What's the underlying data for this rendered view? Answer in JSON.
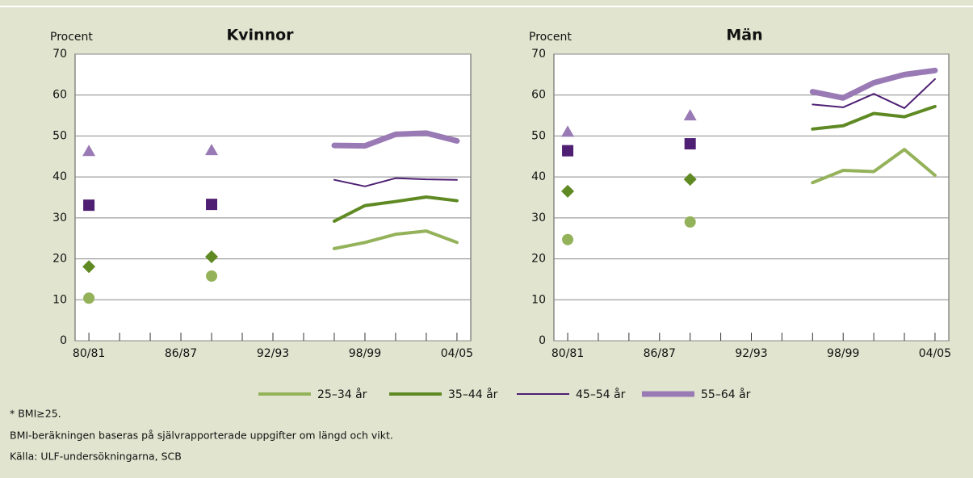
{
  "chart_data": [
    {
      "type": "line",
      "title": "Kvinnor",
      "ylabel": "Procent",
      "x": [
        1996,
        1998,
        2000,
        2002,
        2004
      ],
      "marker_x": [
        1980,
        1988
      ],
      "xlim": [
        1979.1,
        2004.9
      ],
      "xticks": [
        {
          "value": 1980,
          "label": "80/81"
        },
        {
          "value": 1986,
          "label": "86/87"
        },
        {
          "value": 1992,
          "label": "92/93"
        },
        {
          "value": 1998,
          "label": "98/99"
        },
        {
          "value": 2004,
          "label": "04/05"
        }
      ],
      "xminor_ticks": [
        1982,
        1984,
        1988,
        1990,
        1994,
        1996,
        2000,
        2002
      ],
      "ylim": [
        0,
        70
      ],
      "yticks": [
        0,
        10,
        20,
        30,
        40,
        50,
        60,
        70
      ],
      "grid": true,
      "series": [
        {
          "name": "25–34 år",
          "color": "#94b25a",
          "width": 4,
          "marker": "circle",
          "marker_values": [
            10.4,
            15.8
          ],
          "values": [
            22.5,
            24,
            26,
            26.8,
            24
          ]
        },
        {
          "name": "35–44 år",
          "color": "#5f8a23",
          "width": 4,
          "marker": "diamond",
          "marker_values": [
            18.1,
            20.5
          ],
          "values": [
            29.2,
            33,
            34,
            35.1,
            34.2
          ]
        },
        {
          "name": "45–54 år",
          "color": "#4e1f73",
          "width": 2,
          "marker": "square",
          "marker_values": [
            33.1,
            33.3
          ],
          "values": [
            39.3,
            37.7,
            39.7,
            39.4,
            39.3
          ]
        },
        {
          "name": "55–64 år",
          "color": "#9a7ab5",
          "width": 7,
          "marker": "triangle",
          "marker_values": [
            46.3,
            46.5
          ],
          "values": [
            47.7,
            47.6,
            50.4,
            50.7,
            48.8
          ]
        }
      ]
    },
    {
      "type": "line",
      "title": "Män",
      "ylabel": "Procent",
      "x": [
        1996,
        1998,
        2000,
        2002,
        2004
      ],
      "marker_x": [
        1980,
        1988
      ],
      "xlim": [
        1979.1,
        2004.9
      ],
      "xticks": [
        {
          "value": 1980,
          "label": "80/81"
        },
        {
          "value": 1986,
          "label": "86/87"
        },
        {
          "value": 1992,
          "label": "92/93"
        },
        {
          "value": 1998,
          "label": "98/99"
        },
        {
          "value": 2004,
          "label": "04/05"
        }
      ],
      "xminor_ticks": [
        1982,
        1984,
        1988,
        1990,
        1994,
        1996,
        2000,
        2002
      ],
      "ylim": [
        0,
        70
      ],
      "yticks": [
        0,
        10,
        20,
        30,
        40,
        50,
        60,
        70
      ],
      "grid": true,
      "series": [
        {
          "color": "#94b25a",
          "width": 4,
          "marker": "circle",
          "marker_values": [
            24.7,
            29
          ],
          "values": [
            38.6,
            41.6,
            41.3,
            46.7,
            40.4
          ]
        },
        {
          "color": "#5f8a23",
          "width": 4,
          "marker": "diamond",
          "marker_values": [
            36.5,
            39.4
          ],
          "values": [
            51.7,
            52.5,
            55.5,
            54.7,
            57.2
          ]
        },
        {
          "color": "#4e1f73",
          "width": 2,
          "marker": "square",
          "marker_values": [
            46.4,
            48.1
          ],
          "values": [
            57.7,
            57,
            60.3,
            56.8,
            63.9
          ]
        },
        {
          "color": "#9a7ab5",
          "width": 7,
          "marker": "triangle",
          "marker_values": [
            51,
            55
          ],
          "values": [
            60.8,
            59.3,
            63,
            65,
            66
          ]
        }
      ]
    }
  ],
  "notes": [
    "* BMI≥25.",
    "BMI-beräkningen baseras på självrapporterade uppgifter om längd och vikt.",
    "Källa: ULF-undersökningarna, SCB"
  ]
}
